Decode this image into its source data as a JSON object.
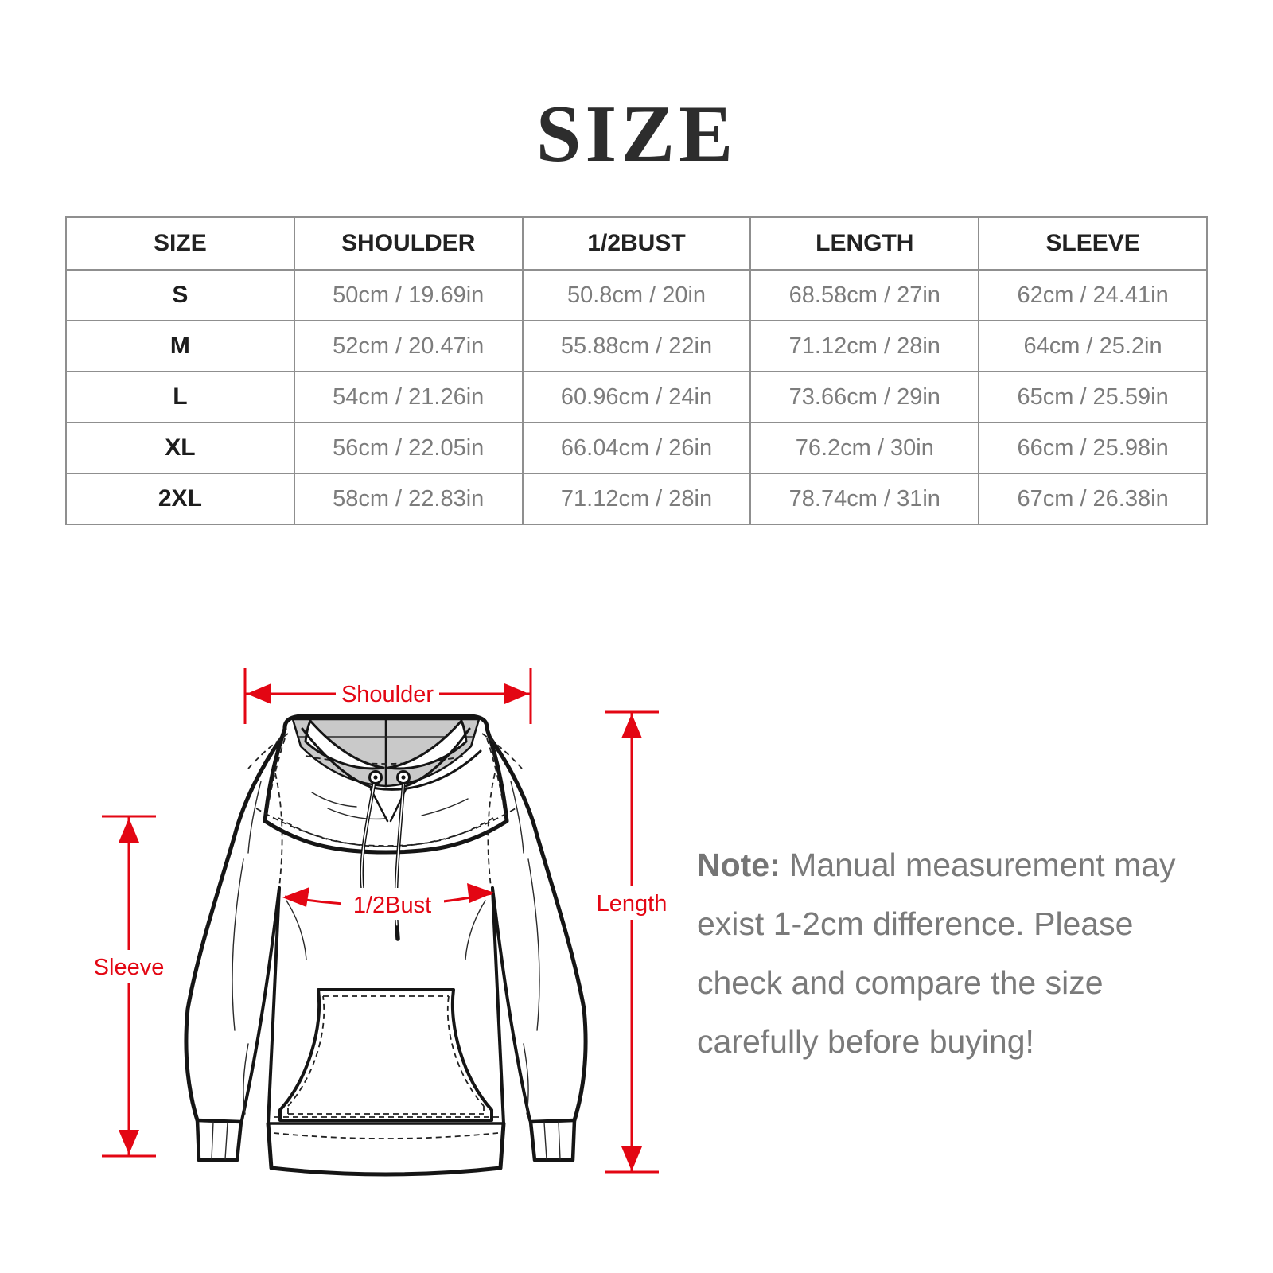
{
  "page": {
    "title": "SIZE"
  },
  "size_table": {
    "headers": [
      "SIZE",
      "SHOULDER",
      "1/2BUST",
      "LENGTH",
      "SLEEVE"
    ],
    "rows": [
      [
        "S",
        "50cm / 19.69in",
        "50.8cm / 20in",
        "68.58cm / 27in",
        "62cm / 24.41in"
      ],
      [
        "M",
        "52cm / 20.47in",
        "55.88cm / 22in",
        "71.12cm / 28in",
        "64cm / 25.2in"
      ],
      [
        "L",
        "54cm / 21.26in",
        "60.96cm / 24in",
        "73.66cm / 29in",
        "65cm / 25.59in"
      ],
      [
        "XL",
        "56cm / 22.05in",
        "66.04cm / 26in",
        "76.2cm / 30in",
        "66cm / 25.98in"
      ],
      [
        "2XL",
        "58cm / 22.83in",
        "71.12cm / 28in",
        "78.74cm / 31in",
        "67cm / 26.38in"
      ]
    ]
  },
  "diagram": {
    "shoulder_label": "Shoulder",
    "bust_label": "1/2Bust",
    "length_label": "Length",
    "sleeve_label": "Sleeve",
    "accent_color": "#e30613"
  },
  "note": {
    "label": "Note:",
    "lines": [
      "Manual measurement may",
      "exist 1-2cm difference. Please",
      "check and compare the size",
      "carefully before buying!"
    ]
  }
}
